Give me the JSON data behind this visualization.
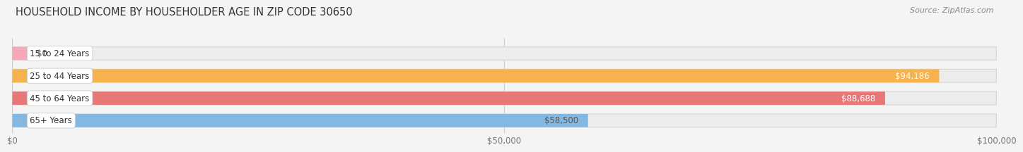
{
  "title": "HOUSEHOLD INCOME BY HOUSEHOLDER AGE IN ZIP CODE 30650",
  "source": "Source: ZipAtlas.com",
  "categories": [
    "15 to 24 Years",
    "25 to 44 Years",
    "45 to 64 Years",
    "65+ Years"
  ],
  "values": [
    0,
    94186,
    88688,
    58500
  ],
  "labels": [
    "$0",
    "$94,186",
    "$88,688",
    "$58,500"
  ],
  "bar_colors": [
    "#f5a8b8",
    "#f5b24e",
    "#e87878",
    "#85b8e0"
  ],
  "xlim": [
    0,
    100000
  ],
  "xticks": [
    0,
    50000,
    100000
  ],
  "xticklabels": [
    "$0",
    "$50,000",
    "$100,000"
  ],
  "bg_color": "#f4f4f4",
  "bar_bg_color": "#e8e8e8",
  "title_fontsize": 10.5,
  "source_fontsize": 8,
  "label_fontsize": 8.5,
  "tick_fontsize": 8.5
}
